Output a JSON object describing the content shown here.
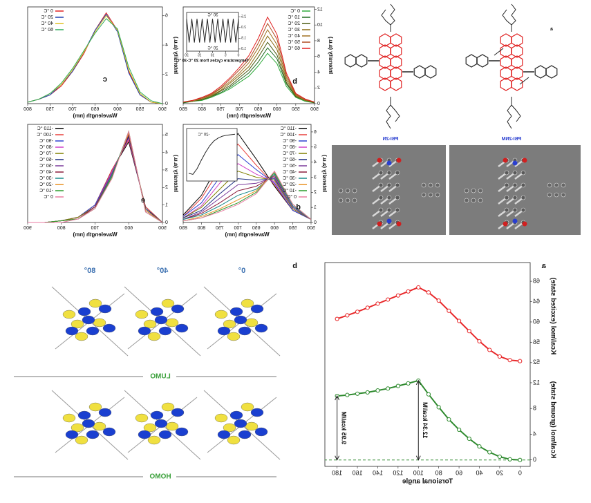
{
  "figure": {
    "top_a": {
      "label": "a",
      "molecules": [
        "PBI-2NM",
        "PBI-2N"
      ]
    },
    "bottom_b": {
      "label": "b",
      "angles": [
        "0°",
        "40°",
        "80°"
      ],
      "orbitals": [
        "LUMO",
        "HOMO"
      ]
    }
  },
  "chart_data": [
    {
      "type": "line",
      "label": "b",
      "xlabel": "Wavelength (nm)",
      "ylabel": "Intensity (a.u.)",
      "legend": "top-left",
      "x": [
        500,
        525,
        550,
        575,
        600,
        625,
        650,
        675,
        700,
        725,
        750,
        775,
        800,
        825,
        850
      ],
      "xlim": [
        500,
        850
      ],
      "xticks": [
        500,
        550,
        600,
        650,
        700,
        750,
        800,
        850
      ],
      "ylim": [
        0,
        12.3
      ],
      "yticks": [
        0,
        2,
        4,
        6,
        8,
        10,
        12
      ],
      "series": [
        {
          "name": "0 °C",
          "color": "#2eaa3a",
          "values": [
            0.1,
            0.3,
            0.8,
            2.2,
            5.1,
            6.4,
            4.8,
            3.5,
            2.7,
            1.9,
            1.3,
            0.8,
            0.4,
            0.3,
            0.1
          ]
        },
        {
          "name": "10 °C",
          "color": "#1f6a1f",
          "values": [
            0.1,
            0.4,
            0.9,
            2.5,
            5.7,
            7.1,
            5.3,
            3.9,
            3.0,
            2.1,
            1.4,
            0.9,
            0.5,
            0.3,
            0.1
          ]
        },
        {
          "name": "20 °C",
          "color": "#4a5a10",
          "values": [
            0.1,
            0.4,
            0.9,
            2.7,
            6.2,
            7.8,
            5.9,
            4.3,
            3.3,
            2.3,
            1.6,
            0.9,
            0.5,
            0.3,
            0.2
          ]
        },
        {
          "name": "30 °C",
          "color": "#8a6a10",
          "values": [
            0.2,
            0.4,
            1.0,
            3.0,
            6.9,
            8.6,
            6.5,
            4.7,
            3.6,
            2.6,
            1.7,
            1.0,
            0.6,
            0.3,
            0.2
          ]
        },
        {
          "name": "40 °C",
          "color": "#a07020",
          "values": [
            0.2,
            0.5,
            1.1,
            3.3,
            7.5,
            9.4,
            7.1,
            5.2,
            3.9,
            2.8,
            1.9,
            1.1,
            0.7,
            0.4,
            0.2
          ]
        },
        {
          "name": "50 °C",
          "color": "#b04a20",
          "values": [
            0.2,
            0.5,
            1.2,
            3.6,
            8.2,
            10.2,
            7.7,
            5.6,
            4.3,
            3.1,
            2.0,
            1.2,
            0.7,
            0.4,
            0.2
          ]
        },
        {
          "name": "60 °C",
          "color": "#e02020",
          "values": [
            0.2,
            0.6,
            1.3,
            3.9,
            8.8,
            11.0,
            8.3,
            6.1,
            4.6,
            3.3,
            2.2,
            1.3,
            0.8,
            0.4,
            0.2
          ]
        }
      ]
    },
    {
      "type": "line",
      "xlabel": "Temperature cycles from 20 °C-30 °C",
      "x": [
        0,
        1,
        2,
        3,
        4,
        5,
        6,
        7,
        8,
        9,
        10,
        11,
        12,
        13,
        14,
        15,
        16,
        17,
        18,
        19,
        20
      ],
      "xlim": [
        0,
        20
      ],
      "xticks": [
        0,
        5,
        10,
        15,
        20
      ],
      "ylim": [
        0.9,
        2.7
      ],
      "yticks": [
        {
          "value": 1,
          "label": "1.0"
        },
        1.5,
        {
          "value": 2,
          "label": "2.0"
        },
        2.5
      ],
      "annotations": [
        {
          "text": "30 °C"
        },
        {
          "text": "20 °C"
        }
      ],
      "series": [
        {
          "color": "#222222",
          "values": [
            2.4,
            1.3,
            2.4,
            1.3,
            2.4,
            1.3,
            2.4,
            1.3,
            2.4,
            1.3,
            2.4,
            1.3,
            2.4,
            1.3,
            2.4,
            1.3,
            2.4,
            1.3,
            2.4,
            1.3,
            2.4
          ]
        }
      ]
    },
    {
      "type": "line",
      "label": "c",
      "xlabel": "Wavelength (nm)",
      "ylabel": "Intensity (a.u.)",
      "legend": "top-right",
      "x": [
        500,
        525,
        550,
        575,
        600,
        625,
        650,
        675,
        700,
        725,
        750,
        775,
        800
      ],
      "xlim": [
        500,
        800
      ],
      "xticks": [
        500,
        550,
        600,
        650,
        700,
        750,
        800
      ],
      "ylim": [
        0,
        6.6
      ],
      "yticks": [
        0,
        2,
        4,
        6
      ],
      "series": [
        {
          "name": "0 °C",
          "color": "#e02020",
          "values": [
            0,
            0.1,
            0.6,
            2.2,
            5.0,
            6.2,
            5.0,
            3.4,
            2.2,
            1.2,
            0.6,
            0.3,
            0.1
          ]
        },
        {
          "name": "20 °C",
          "color": "#1f3fb0",
          "values": [
            0,
            0.1,
            0.6,
            2.1,
            4.9,
            6.1,
            5.0,
            3.5,
            2.2,
            1.3,
            0.6,
            0.3,
            0.1
          ]
        },
        {
          "name": "40 °C",
          "color": "#e0c020",
          "values": [
            0,
            0.1,
            0.7,
            2.3,
            5.0,
            6.0,
            4.9,
            3.5,
            2.3,
            1.3,
            0.7,
            0.3,
            0.1
          ]
        },
        {
          "name": "60 °C",
          "color": "#2eaa5a",
          "values": [
            0,
            0.2,
            0.8,
            2.5,
            5.1,
            5.8,
            4.8,
            3.6,
            2.4,
            1.4,
            0.7,
            0.3,
            0.1
          ]
        }
      ]
    },
    {
      "type": "line",
      "label": "d",
      "xlabel": "Wavelength (nm)",
      "ylabel": "Intensity (a.u.)",
      "legend": "top-left",
      "x": [
        500,
        550,
        600,
        650,
        700,
        750,
        800,
        850
      ],
      "xlim": [
        500,
        850
      ],
      "xticks": [
        500,
        550,
        600,
        650,
        700,
        750,
        800,
        850
      ],
      "ylim": [
        0,
        6.5
      ],
      "yticks": [
        0,
        1,
        2,
        3,
        4,
        5,
        6
      ],
      "series": [
        {
          "name": "-110 °C",
          "color": "#000000",
          "values": [
            0.2,
            0.8,
            2.4,
            4.2,
            5.9,
            4.0,
            1.8,
            0.5
          ]
        },
        {
          "name": "-100 °C",
          "color": "#e8413c",
          "values": [
            0.2,
            0.8,
            2.5,
            3.8,
            5.2,
            3.5,
            1.6,
            0.4
          ]
        },
        {
          "name": "-90 °C",
          "color": "#2a3fd0",
          "values": [
            0.2,
            0.8,
            2.6,
            3.5,
            4.5,
            3.0,
            1.3,
            0.4
          ]
        },
        {
          "name": "-80 °C",
          "color": "#d040c8",
          "values": [
            0.2,
            0.9,
            2.7,
            3.2,
            3.9,
            2.6,
            1.1,
            0.3
          ]
        },
        {
          "name": "-70 °C",
          "color": "#808000",
          "values": [
            0.2,
            0.9,
            2.8,
            3.0,
            3.4,
            2.2,
            1.0,
            0.3
          ]
        },
        {
          "name": "-60 °C",
          "color": "#1a2a80",
          "values": [
            0.2,
            1.0,
            2.9,
            2.8,
            2.9,
            1.9,
            0.8,
            0.3
          ]
        },
        {
          "name": "-50 °C",
          "color": "#7a3a9a",
          "values": [
            0.2,
            1.0,
            3.0,
            2.6,
            2.5,
            1.6,
            0.7,
            0.2
          ]
        },
        {
          "name": "-40 °C",
          "color": "#8a1a3a",
          "values": [
            0.2,
            1.1,
            3.1,
            2.4,
            2.1,
            1.3,
            0.6,
            0.2
          ]
        },
        {
          "name": "-30 °C",
          "color": "#1a8a8a",
          "values": [
            0.2,
            1.1,
            3.2,
            2.2,
            1.8,
            1.1,
            0.5,
            0.2
          ]
        },
        {
          "name": "-20 °C",
          "color": "#e89020",
          "values": [
            0.2,
            1.2,
            3.3,
            2.1,
            1.5,
            0.9,
            0.4,
            0.1
          ]
        },
        {
          "name": "-10 °C",
          "color": "#2a9a2a",
          "values": [
            0.2,
            1.2,
            3.3,
            2.0,
            1.3,
            0.8,
            0.3,
            0.1
          ]
        },
        {
          "name": "0 °C",
          "color": "#e87aa0",
          "values": [
            0.2,
            1.2,
            3.4,
            1.9,
            1.2,
            0.7,
            0.3,
            0.1
          ]
        }
      ]
    },
    {
      "type": "line",
      "x": [
        -110,
        -100,
        -90,
        -80,
        -70,
        -60,
        -50,
        -40,
        -30,
        -20,
        -10,
        0
      ],
      "xlim": [
        -115,
        5
      ],
      "ylim": [
        1,
        6.5
      ],
      "annotations": [
        {
          "text": "-20 °C"
        }
      ],
      "series": [
        {
          "color": "#222222",
          "values": [
            5.9,
            5.85,
            5.8,
            5.7,
            5.5,
            5.2,
            4.7,
            4.0,
            3.2,
            2.3,
            1.7,
            1.8
          ]
        }
      ]
    },
    {
      "type": "line",
      "label": "e",
      "xlabel": "Wavelength (nm)",
      "ylabel": "Intensity (a.u.)",
      "legend": "top-right",
      "x": [
        500,
        550,
        600,
        650,
        700,
        750,
        800,
        850,
        900
      ],
      "xlim": [
        500,
        900
      ],
      "xticks": [
        500,
        600,
        700,
        800,
        900
      ],
      "ylim": [
        0,
        5.6
      ],
      "yticks": [
        0,
        1,
        2,
        3,
        4,
        5
      ],
      "series": [
        {
          "name": "-110 °C",
          "color": "#000000",
          "values": [
            0,
            0.9,
            4.6,
            3.0,
            1.0,
            0.3,
            0.1,
            0,
            0
          ]
        },
        {
          "name": "-100 °C",
          "color": "#e8413c",
          "values": [
            0,
            0.9,
            4.7,
            3.0,
            1.0,
            0.3,
            0.1,
            0,
            0
          ]
        },
        {
          "name": "-90 °C",
          "color": "#2a3fd0",
          "values": [
            0,
            0.8,
            4.8,
            2.9,
            1.0,
            0.3,
            0.1,
            0,
            0
          ]
        },
        {
          "name": "-80 °C",
          "color": "#d040c8",
          "values": [
            0,
            0.8,
            4.8,
            2.9,
            0.9,
            0.3,
            0.1,
            0,
            0
          ]
        },
        {
          "name": "-70 °C",
          "color": "#808000",
          "values": [
            0,
            0.8,
            4.9,
            2.8,
            0.9,
            0.3,
            0.1,
            0,
            0
          ]
        },
        {
          "name": "-60 °C",
          "color": "#1a2a80",
          "values": [
            0,
            0.8,
            4.9,
            2.8,
            0.9,
            0.2,
            0.1,
            0,
            0
          ]
        },
        {
          "name": "-50 °C",
          "color": "#7a3a9a",
          "values": [
            0,
            0.7,
            5.0,
            2.8,
            0.9,
            0.2,
            0.1,
            0,
            0
          ]
        },
        {
          "name": "-40 °C",
          "color": "#8a1a3a",
          "values": [
            0,
            0.7,
            5.0,
            2.7,
            0.9,
            0.2,
            0.1,
            0,
            0
          ]
        },
        {
          "name": "-30 °C",
          "color": "#1a8a8a",
          "values": [
            0,
            0.7,
            5.1,
            2.7,
            0.8,
            0.2,
            0.1,
            0,
            0
          ]
        },
        {
          "name": "-20 °C",
          "color": "#e89020",
          "values": [
            0,
            0.7,
            5.1,
            2.6,
            0.8,
            0.2,
            0.1,
            0,
            0
          ]
        },
        {
          "name": "-10 °C",
          "color": "#2a9a2a",
          "values": [
            0,
            0.6,
            5.2,
            2.6,
            0.8,
            0.2,
            0.1,
            0,
            0
          ]
        },
        {
          "name": "0 °C",
          "color": "#e87aa0",
          "values": [
            0,
            0.6,
            5.2,
            2.5,
            0.8,
            0.2,
            0,
            0,
            0
          ]
        }
      ]
    },
    {
      "type": "line",
      "label": "a",
      "xlabel": "Torsional angle",
      "ylabel": "Kcal/mol (excited state)",
      "y2label": "Kcal/mol (ground state)",
      "marker": "open-circle",
      "hline": 0,
      "x": [
        0,
        10,
        20,
        30,
        40,
        50,
        60,
        70,
        80,
        90,
        100,
        110,
        120,
        130,
        140,
        150,
        160,
        170,
        180
      ],
      "xlim": [
        -10,
        192
      ],
      "xticks": [
        0,
        20,
        40,
        60,
        80,
        100,
        120,
        140,
        160,
        180
      ],
      "ylim": [
        51.3,
        71
      ],
      "yticks": [
        52,
        56,
        60,
        64,
        68
      ],
      "y2lim": [
        -1,
        13.5
      ],
      "y2ticks": [
        0,
        4,
        8,
        12
      ],
      "annotations": [
        {
          "text": "9.95 kcal/M",
          "x": 180
        },
        {
          "text": "12.34 kcal/M",
          "x": 100
        }
      ],
      "series": [
        {
          "color": "#e8282a",
          "values": [
            52.3,
            52.5,
            53.2,
            54.5,
            56.2,
            58.2,
            60.2,
            62.2,
            64.2,
            65.8,
            66.8,
            66.0,
            65.2,
            64.4,
            63.6,
            62.8,
            62.0,
            61.3,
            60.6
          ]
        },
        {
          "color": "#2e8a2e",
          "axis": "y2",
          "values": [
            0,
            0.1,
            0.5,
            1.2,
            2.1,
            3.3,
            4.7,
            6.3,
            8.2,
            10.2,
            12.34,
            11.9,
            11.5,
            11.1,
            10.8,
            10.5,
            10.3,
            10.1,
            9.95
          ]
        }
      ]
    }
  ]
}
